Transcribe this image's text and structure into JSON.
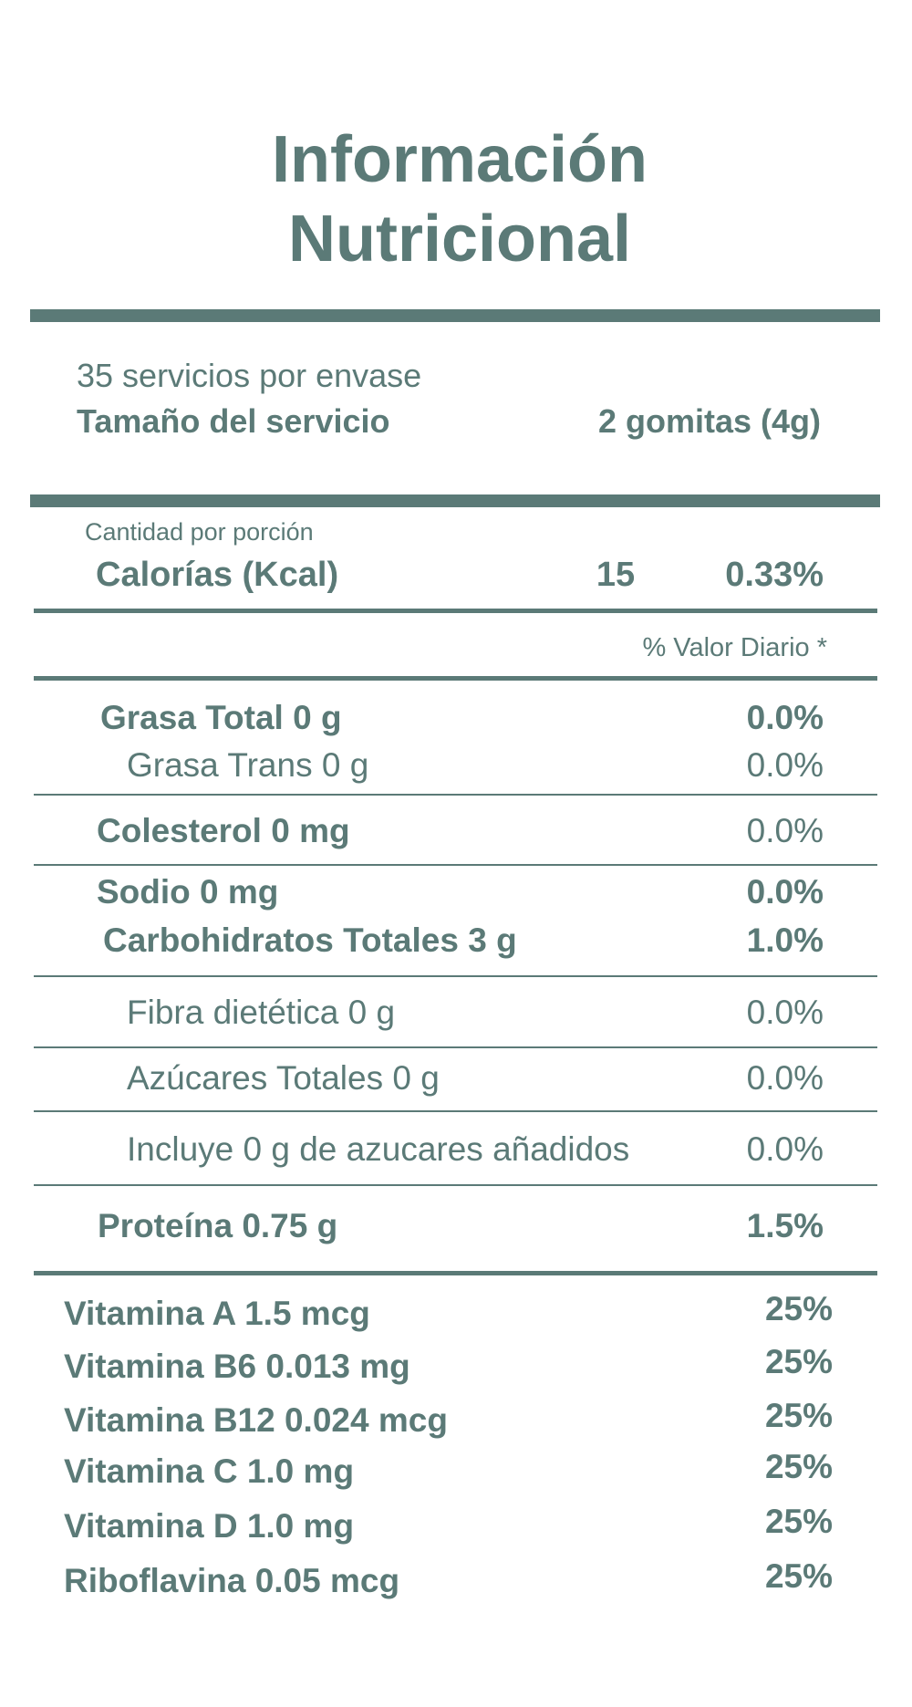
{
  "header": {
    "title_lines": [
      "Información",
      "Nutricional"
    ]
  },
  "servings": {
    "per_container": "35 servicios por envase",
    "serving_size_label": "Tamaño del servicio",
    "serving_size_value": "2 gomitas (4g)"
  },
  "calories": {
    "amount_label": "Cantidad por porción",
    "label": "Calorías (Kcal)",
    "value": "15",
    "percent": "0.33%"
  },
  "daily_value_header": "% Valor Diario *",
  "nutrients": [
    {
      "name": "Grasa Total 0 g",
      "daily_value": "0.0%"
    },
    {
      "name": "Grasa Trans 0 g",
      "daily_value": "0.0%"
    },
    {
      "name": "Colesterol 0 mg",
      "daily_value": "0.0%"
    },
    {
      "name": "Sodio 0 mg",
      "daily_value": "0.0%"
    },
    {
      "name": "Carbohidratos Totales 3 g",
      "daily_value": "1.0%"
    },
    {
      "name": "Fibra dietética 0 g",
      "daily_value": "0.0%"
    },
    {
      "name": "Azúcares Totales 0 g",
      "daily_value": "0.0%"
    },
    {
      "name": "Incluye 0 g de azucares añadidos",
      "daily_value": "0.0%"
    },
    {
      "name": "Proteína 0.75 g",
      "daily_value": "1.5%"
    }
  ],
  "vitamins": [
    {
      "name": "Vitamina A 1.5 mcg",
      "daily_value": "25%"
    },
    {
      "name": "Vitamina B6 0.013 mg",
      "daily_value": "25%"
    },
    {
      "name": "Vitamina B12 0.024 mcg",
      "daily_value": "25%"
    },
    {
      "name": "Vitamina C 1.0 mg",
      "daily_value": "25%"
    },
    {
      "name": "Vitamina D 1.0 mg",
      "daily_value": "25%"
    },
    {
      "name": "Riboflavina 0.05 mcg",
      "daily_value": "25%"
    }
  ]
}
